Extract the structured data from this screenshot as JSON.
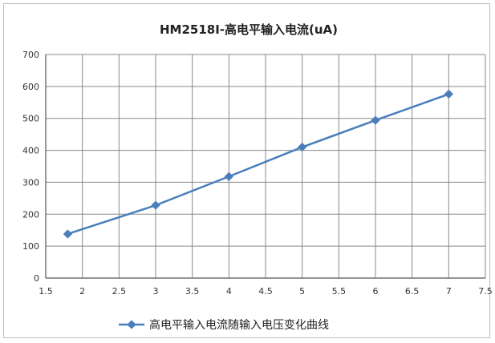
{
  "chart_data": {
    "type": "line",
    "title": "HM2518I-高电平输入电流(uA)",
    "x": [
      1.8,
      3,
      4,
      5,
      6,
      7
    ],
    "series": [
      {
        "name": "高电平输入电流随输入电压变化曲线",
        "values": [
          138,
          228,
          318,
          410,
          494,
          576
        ],
        "color": "#4a7ebb"
      }
    ],
    "xlim": [
      1.5,
      7.5
    ],
    "ylim": [
      0,
      700
    ],
    "xticks": [
      "1.5",
      "2",
      "2.5",
      "3",
      "3.5",
      "4",
      "4.5",
      "5",
      "5.5",
      "6",
      "6.5",
      "7",
      "7.5"
    ],
    "yticks": [
      "0",
      "100",
      "200",
      "300",
      "400",
      "500",
      "600",
      "700"
    ],
    "grid": true,
    "legend": "bottom",
    "gridColor": "#888888",
    "axisColor": "#555555"
  }
}
